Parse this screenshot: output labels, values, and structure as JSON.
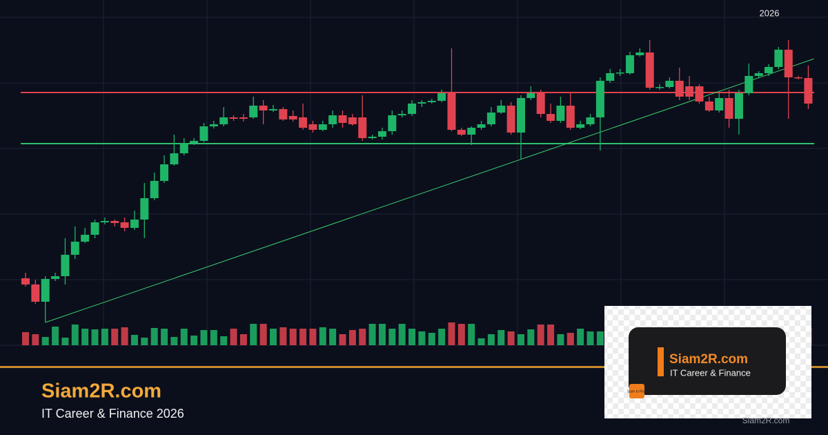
{
  "chart_data": {
    "type": "candlestick",
    "annotation": "2026",
    "ylim": [
      0,
      475
    ],
    "vlim": [
      0,
      95
    ],
    "up_color": "#1fb567",
    "down_color": "#e0434f",
    "open": [
      97,
      88,
      63,
      96,
      100,
      131,
      150,
      160,
      178,
      180,
      178,
      170,
      182,
      213,
      238,
      262,
      278,
      293,
      296,
      317,
      320,
      330,
      330,
      330,
      347,
      340,
      342,
      332,
      330,
      320,
      312,
      320,
      333,
      330,
      330,
      300,
      302,
      310,
      333,
      335,
      350,
      352,
      354,
      365,
      312,
      305,
      315,
      320,
      337,
      347,
      308,
      358,
      365,
      335,
      325,
      347,
      315,
      320,
      330,
      383,
      394,
      394,
      420,
      424,
      373,
      374,
      383,
      375,
      375,
      353,
      340,
      358,
      328,
      365,
      390,
      394,
      403,
      428,
      388,
      387
    ],
    "high": [
      105,
      95,
      100,
      105,
      155,
      172,
      170,
      182,
      185,
      182,
      185,
      195,
      235,
      250,
      275,
      305,
      300,
      300,
      322,
      325,
      345,
      333,
      335,
      360,
      355,
      348,
      345,
      340,
      350,
      325,
      325,
      340,
      340,
      335,
      362,
      305,
      315,
      340,
      340,
      355,
      355,
      357,
      370,
      430,
      315,
      317,
      325,
      345,
      355,
      352,
      362,
      375,
      370,
      350,
      360,
      367,
      325,
      335,
      388,
      400,
      400,
      425,
      430,
      442,
      378,
      388,
      402,
      390,
      378,
      360,
      365,
      370,
      370,
      408,
      397,
      407,
      432,
      442,
      390,
      405
    ],
    "low": [
      85,
      60,
      33,
      93,
      88,
      125,
      148,
      155,
      175,
      172,
      165,
      167,
      155,
      210,
      235,
      260,
      275,
      290,
      294,
      314,
      317,
      325,
      324,
      328,
      320,
      338,
      325,
      324,
      312,
      308,
      310,
      315,
      315,
      318,
      296,
      298,
      298,
      305,
      330,
      332,
      345,
      350,
      352,
      310,
      303,
      290,
      312,
      317,
      335,
      305,
      270,
      355,
      330,
      322,
      322,
      312,
      313,
      317,
      282,
      380,
      390,
      392,
      418,
      370,
      370,
      372,
      355,
      355,
      350,
      338,
      337,
      315,
      305,
      362,
      388,
      390,
      400,
      328,
      385,
      342
    ],
    "close": [
      88,
      63,
      96,
      100,
      131,
      150,
      160,
      178,
      180,
      177,
      170,
      182,
      213,
      238,
      262,
      278,
      293,
      296,
      317,
      320,
      330,
      328,
      328,
      347,
      340,
      342,
      327,
      327,
      315,
      312,
      320,
      333,
      322,
      320,
      300,
      302,
      310,
      333,
      335,
      350,
      352,
      354,
      365,
      312,
      305,
      315,
      320,
      337,
      347,
      308,
      358,
      365,
      335,
      325,
      347,
      315,
      320,
      330,
      383,
      394,
      395,
      420,
      424,
      373,
      374,
      383,
      360,
      360,
      353,
      340,
      358,
      328,
      365,
      390,
      394,
      403,
      428,
      388,
      387,
      350
    ],
    "volume": [
      19,
      16,
      12,
      27,
      11,
      30,
      24,
      23,
      24,
      24,
      26,
      15,
      11,
      25,
      24,
      12,
      24,
      14,
      22,
      22,
      13,
      24,
      16,
      31,
      31,
      24,
      26,
      24,
      24,
      24,
      26,
      24,
      16,
      22,
      24,
      31,
      31,
      24,
      31,
      24,
      20,
      18,
      24,
      33,
      31,
      31,
      10,
      16,
      22,
      20,
      16,
      23,
      30,
      30,
      16,
      18,
      24,
      20,
      20,
      24,
      22,
      25,
      20,
      28,
      18,
      22,
      24,
      20,
      26,
      22,
      18,
      24,
      20,
      22,
      26,
      24,
      28,
      22,
      20,
      25
    ],
    "levels": [
      {
        "value": 366,
        "color": "#e0434f"
      },
      {
        "value": 292,
        "color": "#2fc16f"
      }
    ],
    "trendline": {
      "from": [
        2,
        33
      ],
      "to": [
        79,
        412
      ],
      "color": "#3ccf6e"
    }
  },
  "brand": {
    "title": "Siam2R.com",
    "subtitle": "IT Career & Finance 2026"
  },
  "watermark": {
    "title": "Siam2R.com",
    "subtitle": "IT Career & Finance",
    "logo": "Siam to Rich",
    "credit": "Siam2R.com"
  }
}
